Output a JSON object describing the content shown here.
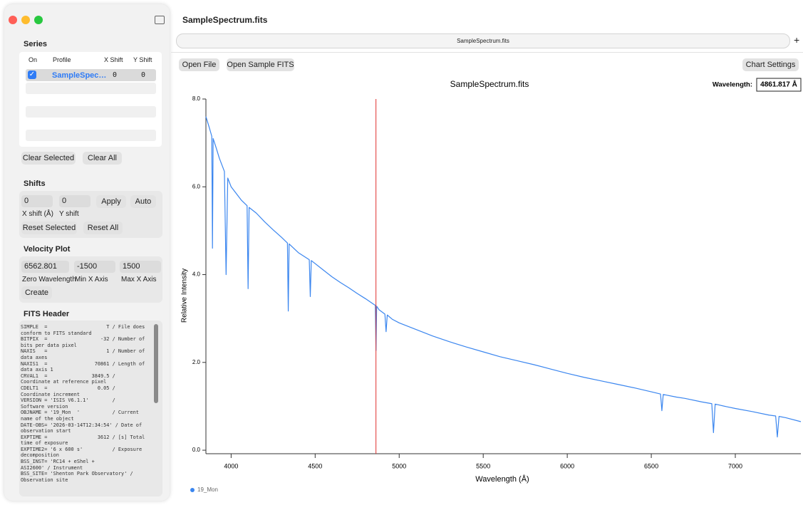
{
  "window": {
    "title": "SampleSpectrum.fits",
    "tab": "SampleSpectrum.fits"
  },
  "sidebar": {
    "series": {
      "heading": "Series",
      "columns": [
        "On",
        "Profile",
        "X Shift",
        "Y Shift"
      ],
      "rows": [
        [
          "SampleSpec…",
          "0",
          "0"
        ]
      ],
      "buttons": [
        "Clear Selected",
        "Clear All"
      ]
    },
    "shifts": {
      "heading": "Shifts",
      "fields": [
        "0",
        "0"
      ],
      "buttons": [
        "Apply",
        "Auto"
      ],
      "labels": [
        "X shift (Å)",
        "Y shift"
      ],
      "reset_buttons": [
        "Reset Selected",
        "Reset All"
      ]
    },
    "velocity_plot": {
      "heading": "Velocity Plot",
      "fields": [
        "6562.801",
        "-1500",
        "1500"
      ],
      "labels": [
        "Zero Wavelength",
        "Min X Axis",
        "Max X Axis"
      ],
      "button": "Create"
    },
    "fits_header": {
      "heading": "FITS Header",
      "lines": [
        "SIMPLE  =                    T / File does",
        "conform to FITS standard",
        "BITPIX  =                  -32 / Number of",
        "bits per data pixel",
        "NAXIS   =                    1 / Number of",
        "data axes",
        "NAXIS1  =                70861 / Length of",
        "data axis 1",
        "CRVAL1  =               3849.5 /",
        "Coordinate at reference pixel",
        "CDELT1  =                 0.05 /",
        "Coordinate increment",
        "VERSION = 'ISIS V6.1.1'        /",
        "Software version",
        "OBJNAME = '19_Mon  '           / Current",
        "name of the object",
        "DATE-OBS= '2026-03-14T12:34:54' / Date of",
        "observation start",
        "EXPTIME =                 3612 / [s] Total",
        "time of exposure",
        "EXPTIME2= '6 x 600 s'          / Exposure",
        "decomposition",
        "BSS_INST= 'RC14 + eShel +",
        "ASI2600' / Instrument",
        "BSS_SITE= 'Shenton Park Observatory' /",
        "Observation site"
      ]
    }
  },
  "toolbar": {
    "buttons": [
      "Open File",
      "Open Sample FITS"
    ],
    "settings": "Chart Settings",
    "add": "+"
  },
  "chart_data": {
    "type": "line",
    "title": "SampleSpectrum.fits",
    "xlabel": "Wavelength (Å)",
    "ylabel": "Relative Intensity",
    "x": [
      3850,
      3870,
      3885,
      3889,
      3893,
      3910,
      3930,
      3960,
      3970,
      3980,
      4000,
      4030,
      4060,
      4095,
      4101,
      4107,
      4150,
      4200,
      4250,
      4300,
      4335,
      4340,
      4345,
      4400,
      4465,
      4471,
      4477,
      4550,
      4600,
      4650,
      4700,
      4750,
      4800,
      4850,
      4858,
      4862,
      4866,
      4880,
      4915,
      4922,
      4929,
      4960,
      5000,
      5100,
      5200,
      5300,
      5400,
      5500,
      5600,
      5700,
      5800,
      5900,
      6000,
      6100,
      6200,
      6300,
      6400,
      6500,
      6555,
      6563,
      6571,
      6650,
      6700,
      6800,
      6860,
      6870,
      6880,
      6950,
      7000,
      7100,
      7200,
      7240,
      7250,
      7260,
      7300,
      7390
    ],
    "series": [
      {
        "name": "19_Mon",
        "color": "#3b86ef",
        "values": [
          7.6,
          7.35,
          7.15,
          4.6,
          7.1,
          6.9,
          6.65,
          6.35,
          4.0,
          6.2,
          6.0,
          5.85,
          5.7,
          5.57,
          3.68,
          5.53,
          5.4,
          5.2,
          5.02,
          4.85,
          4.72,
          3.17,
          4.7,
          4.5,
          4.34,
          3.5,
          4.32,
          4.1,
          3.95,
          3.82,
          3.7,
          3.57,
          3.45,
          3.32,
          3.3,
          2.27,
          3.28,
          3.2,
          3.1,
          2.7,
          3.08,
          2.98,
          2.9,
          2.75,
          2.6,
          2.47,
          2.35,
          2.24,
          2.13,
          2.04,
          1.95,
          1.85,
          1.75,
          1.66,
          1.58,
          1.5,
          1.42,
          1.33,
          1.28,
          0.9,
          1.27,
          1.21,
          1.18,
          1.1,
          1.06,
          0.4,
          1.05,
          0.99,
          0.95,
          0.88,
          0.8,
          0.78,
          0.3,
          0.77,
          0.74,
          0.65
        ]
      }
    ],
    "xlim": [
      3850,
      7390
    ],
    "ylim": [
      -0.08,
      8.0
    ],
    "xticks": [
      4000,
      4500,
      5000,
      5500,
      6000,
      6500,
      7000
    ],
    "yticks": [
      {
        "value": 0,
        "label": "0.0"
      },
      {
        "value": 2,
        "label": "2.0"
      },
      {
        "value": 4,
        "label": "4.0"
      },
      {
        "value": 6,
        "label": "6.0"
      },
      {
        "value": 8,
        "label": "8.0"
      }
    ],
    "grid": false,
    "cursor": {
      "label": "Wavelength:",
      "value": 4861.817,
      "value_label": "4861.817 Å",
      "color": "#e0312e"
    }
  }
}
